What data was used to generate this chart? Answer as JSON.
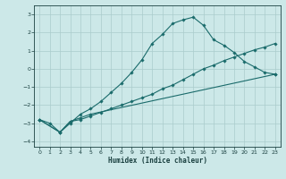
{
  "xlabel": "Humidex (Indice chaleur)",
  "background_color": "#cce8e8",
  "grid_color": "#aacccc",
  "line_color": "#1a6b6b",
  "xlim": [
    -0.5,
    23.5
  ],
  "ylim": [
    -4.3,
    3.5
  ],
  "x_ticks": [
    0,
    1,
    2,
    3,
    4,
    5,
    6,
    7,
    8,
    9,
    10,
    11,
    12,
    13,
    14,
    15,
    16,
    17,
    18,
    19,
    20,
    21,
    22,
    23
  ],
  "y_ticks": [
    -4,
    -3,
    -2,
    -1,
    0,
    1,
    2,
    3
  ],
  "line1_x": [
    0,
    1,
    2,
    3,
    4,
    5,
    6,
    7,
    8,
    9,
    10,
    11,
    12,
    13,
    14,
    15,
    16,
    17,
    18,
    19,
    20,
    21,
    22,
    23
  ],
  "line1_y": [
    -2.8,
    -3.0,
    -3.5,
    -3.0,
    -2.5,
    -2.2,
    -1.8,
    -1.3,
    -0.8,
    -0.2,
    0.5,
    1.4,
    1.9,
    2.5,
    2.7,
    2.85,
    2.4,
    1.6,
    1.3,
    0.9,
    0.4,
    0.1,
    -0.2,
    -0.3
  ],
  "line2_x": [
    0,
    2,
    3,
    4,
    5,
    6,
    7,
    8,
    9,
    10,
    11,
    12,
    13,
    14,
    15,
    16,
    17,
    18,
    19,
    20,
    21,
    22,
    23
  ],
  "line2_y": [
    -2.8,
    -3.5,
    -2.9,
    -2.8,
    -2.6,
    -2.4,
    -2.2,
    -2.0,
    -1.8,
    -1.6,
    -1.4,
    -1.1,
    -0.9,
    -0.6,
    -0.3,
    0.0,
    0.2,
    0.45,
    0.65,
    0.85,
    1.05,
    1.2,
    1.4
  ],
  "line3_x": [
    0,
    2,
    3,
    4,
    5,
    23
  ],
  "line3_y": [
    -2.8,
    -3.5,
    -2.9,
    -2.7,
    -2.5,
    -0.3
  ]
}
